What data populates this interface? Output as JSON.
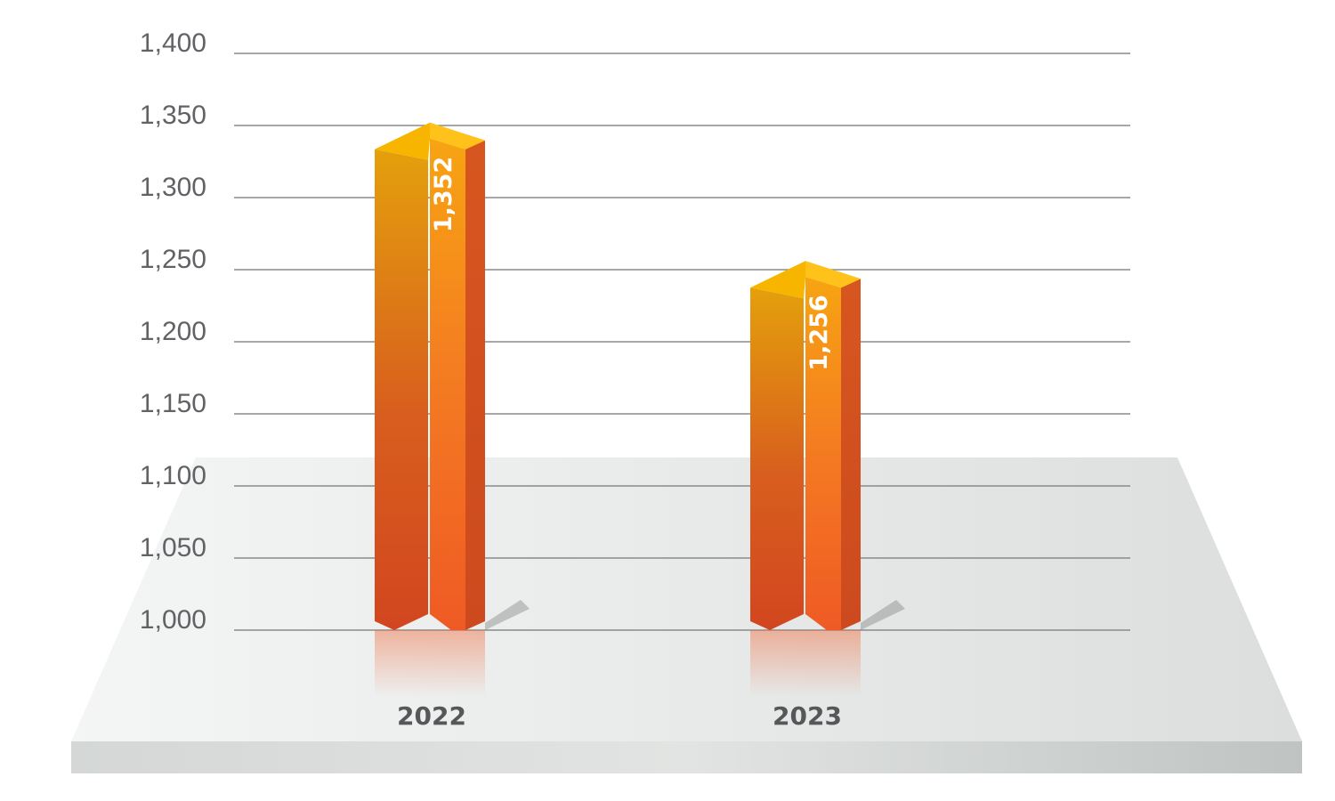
{
  "chart_data": {
    "type": "bar",
    "categories": [
      "2022",
      "2023"
    ],
    "values": [
      1352,
      1256
    ],
    "data_labels": [
      "1,352",
      "1,256"
    ],
    "ylim": [
      1000,
      1400
    ],
    "y_ticks": [
      1000,
      1050,
      1100,
      1150,
      1200,
      1250,
      1300,
      1350,
      1400
    ],
    "y_tick_labels": [
      "1,000",
      "1,050",
      "1,100",
      "1,150",
      "1,200",
      "1,250",
      "1,300",
      "1,350",
      "1,400"
    ],
    "grid": true,
    "style": "3d-pillar",
    "colors": {
      "bar_top": "#f7b500",
      "bar_light": "#f5a020",
      "bar_mid": "#ef6a25",
      "bar_dark": "#d2461f",
      "gridline": "#888a8c",
      "floor_light": "#f3f4f4",
      "floor_dark": "#c8cccb"
    }
  }
}
